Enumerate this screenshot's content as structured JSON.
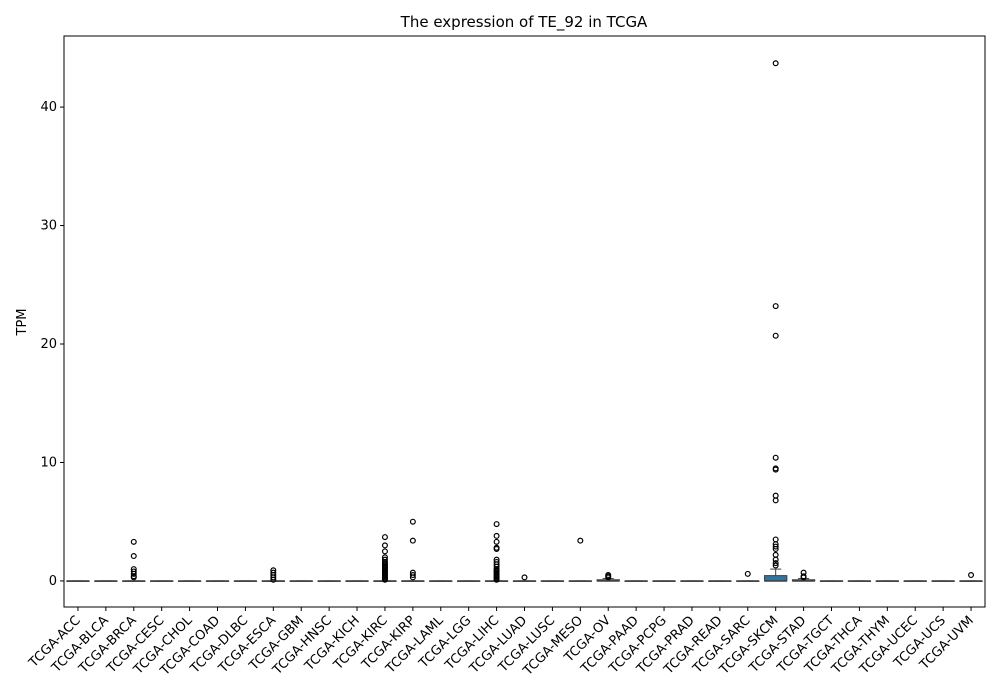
{
  "chart_data": {
    "type": "box",
    "title": "The expression of TE_92 in TCGA",
    "xlabel": "",
    "ylabel": "TPM",
    "ylim": [
      -2.2,
      46
    ],
    "yticks": [
      0,
      10,
      20,
      30,
      40
    ],
    "box_color": "#3274a1",
    "categories": [
      "TCGA-ACC",
      "TCGA-BLCA",
      "TCGA-BRCA",
      "TCGA-CESC",
      "TCGA-CHOL",
      "TCGA-COAD",
      "TCGA-DLBC",
      "TCGA-ESCA",
      "TCGA-GBM",
      "TCGA-HNSC",
      "TCGA-KICH",
      "TCGA-KIRC",
      "TCGA-KIRP",
      "TCGA-LAML",
      "TCGA-LGG",
      "TCGA-LIHC",
      "TCGA-LUAD",
      "TCGA-LUSC",
      "TCGA-MESO",
      "TCGA-OV",
      "TCGA-PAAD",
      "TCGA-PCPG",
      "TCGA-PRAD",
      "TCGA-READ",
      "TCGA-SARC",
      "TCGA-SKCM",
      "TCGA-STAD",
      "TCGA-TGCT",
      "TCGA-THCA",
      "TCGA-THYM",
      "TCGA-UCEC",
      "TCGA-UCS",
      "TCGA-UVM"
    ],
    "boxes": [
      {
        "q1": 0,
        "median": 0,
        "q3": 0,
        "whisker_low": 0,
        "whisker_high": 0,
        "outliers": []
      },
      {
        "q1": 0,
        "median": 0,
        "q3": 0,
        "whisker_low": 0,
        "whisker_high": 0,
        "outliers": []
      },
      {
        "q1": 0,
        "median": 0,
        "q3": 0,
        "whisker_low": 0,
        "whisker_high": 0,
        "outliers": [
          3.3,
          2.1,
          1.0,
          0.8,
          0.6,
          0.4,
          0.3
        ]
      },
      {
        "q1": 0,
        "median": 0,
        "q3": 0,
        "whisker_low": 0,
        "whisker_high": 0,
        "outliers": []
      },
      {
        "q1": 0,
        "median": 0,
        "q3": 0,
        "whisker_low": 0,
        "whisker_high": 0,
        "outliers": []
      },
      {
        "q1": 0,
        "median": 0,
        "q3": 0,
        "whisker_low": 0,
        "whisker_high": 0,
        "outliers": []
      },
      {
        "q1": 0,
        "median": 0,
        "q3": 0,
        "whisker_low": 0,
        "whisker_high": 0,
        "outliers": []
      },
      {
        "q1": 0,
        "median": 0,
        "q3": 0,
        "whisker_low": 0,
        "whisker_high": 0,
        "outliers": [
          0.9,
          0.7,
          0.5,
          0.3,
          0.1
        ]
      },
      {
        "q1": 0,
        "median": 0,
        "q3": 0,
        "whisker_low": 0,
        "whisker_high": 0,
        "outliers": []
      },
      {
        "q1": 0,
        "median": 0,
        "q3": 0,
        "whisker_low": 0,
        "whisker_high": 0,
        "outliers": []
      },
      {
        "q1": 0,
        "median": 0,
        "q3": 0,
        "whisker_low": 0,
        "whisker_high": 0,
        "outliers": []
      },
      {
        "q1": 0,
        "median": 0,
        "q3": 0,
        "whisker_low": 0,
        "whisker_high": 0,
        "outliers": [
          3.7,
          3.0,
          2.5,
          2.0,
          1.8,
          1.6,
          1.5,
          1.4,
          1.3,
          1.2,
          1.1,
          1.0,
          0.9,
          0.8,
          0.7,
          0.6,
          0.5,
          0.4,
          0.3,
          0.2,
          0.1
        ]
      },
      {
        "q1": 0,
        "median": 0,
        "q3": 0,
        "whisker_low": 0,
        "whisker_high": 0,
        "outliers": [
          5.0,
          3.4,
          0.7,
          0.5,
          0.3
        ]
      },
      {
        "q1": 0,
        "median": 0,
        "q3": 0,
        "whisker_low": 0,
        "whisker_high": 0,
        "outliers": []
      },
      {
        "q1": 0,
        "median": 0,
        "q3": 0,
        "whisker_low": 0,
        "whisker_high": 0,
        "outliers": []
      },
      {
        "q1": 0,
        "median": 0,
        "q3": 0,
        "whisker_low": 0,
        "whisker_high": 0,
        "outliers": [
          4.8,
          3.8,
          3.3,
          2.8,
          2.7,
          1.8,
          1.6,
          1.4,
          1.2,
          1.0,
          0.9,
          0.8,
          0.7,
          0.6,
          0.5,
          0.4,
          0.3,
          0.2,
          0.1
        ]
      },
      {
        "q1": 0,
        "median": 0,
        "q3": 0,
        "whisker_low": 0,
        "whisker_high": 0,
        "outliers": [
          0.3
        ]
      },
      {
        "q1": 0,
        "median": 0,
        "q3": 0,
        "whisker_low": 0,
        "whisker_high": 0,
        "outliers": []
      },
      {
        "q1": 0,
        "median": 0,
        "q3": 0,
        "whisker_low": 0,
        "whisker_high": 0,
        "outliers": [
          3.4
        ]
      },
      {
        "q1": 0,
        "median": 0,
        "q3": 0.1,
        "whisker_low": 0,
        "whisker_high": 0.2,
        "outliers": [
          0.5,
          0.4,
          0.3
        ]
      },
      {
        "q1": 0,
        "median": 0,
        "q3": 0,
        "whisker_low": 0,
        "whisker_high": 0,
        "outliers": []
      },
      {
        "q1": 0,
        "median": 0,
        "q3": 0,
        "whisker_low": 0,
        "whisker_high": 0,
        "outliers": []
      },
      {
        "q1": 0,
        "median": 0,
        "q3": 0,
        "whisker_low": 0,
        "whisker_high": 0,
        "outliers": []
      },
      {
        "q1": 0,
        "median": 0,
        "q3": 0,
        "whisker_low": 0,
        "whisker_high": 0,
        "outliers": []
      },
      {
        "q1": 0,
        "median": 0,
        "q3": 0,
        "whisker_low": 0,
        "whisker_high": 0,
        "outliers": [
          0.6
        ]
      },
      {
        "q1": 0,
        "median": 0,
        "q3": 0.45,
        "whisker_low": 0,
        "whisker_high": 1.0,
        "outliers": [
          43.7,
          23.2,
          20.7,
          10.4,
          9.5,
          9.4,
          7.2,
          6.8,
          3.5,
          3.1,
          2.9,
          2.7,
          2.2,
          1.8,
          1.5,
          1.3
        ]
      },
      {
        "q1": 0,
        "median": 0,
        "q3": 0.1,
        "whisker_low": 0,
        "whisker_high": 0.2,
        "outliers": [
          0.7,
          0.4,
          0.3
        ]
      },
      {
        "q1": 0,
        "median": 0,
        "q3": 0,
        "whisker_low": 0,
        "whisker_high": 0,
        "outliers": []
      },
      {
        "q1": 0,
        "median": 0,
        "q3": 0,
        "whisker_low": 0,
        "whisker_high": 0,
        "outliers": []
      },
      {
        "q1": 0,
        "median": 0,
        "q3": 0,
        "whisker_low": 0,
        "whisker_high": 0,
        "outliers": []
      },
      {
        "q1": 0,
        "median": 0,
        "q3": 0,
        "whisker_low": 0,
        "whisker_high": 0,
        "outliers": []
      },
      {
        "q1": 0,
        "median": 0,
        "q3": 0,
        "whisker_low": 0,
        "whisker_high": 0,
        "outliers": []
      },
      {
        "q1": 0,
        "median": 0,
        "q3": 0,
        "whisker_low": 0,
        "whisker_high": 0,
        "outliers": [
          0.5
        ]
      }
    ]
  }
}
